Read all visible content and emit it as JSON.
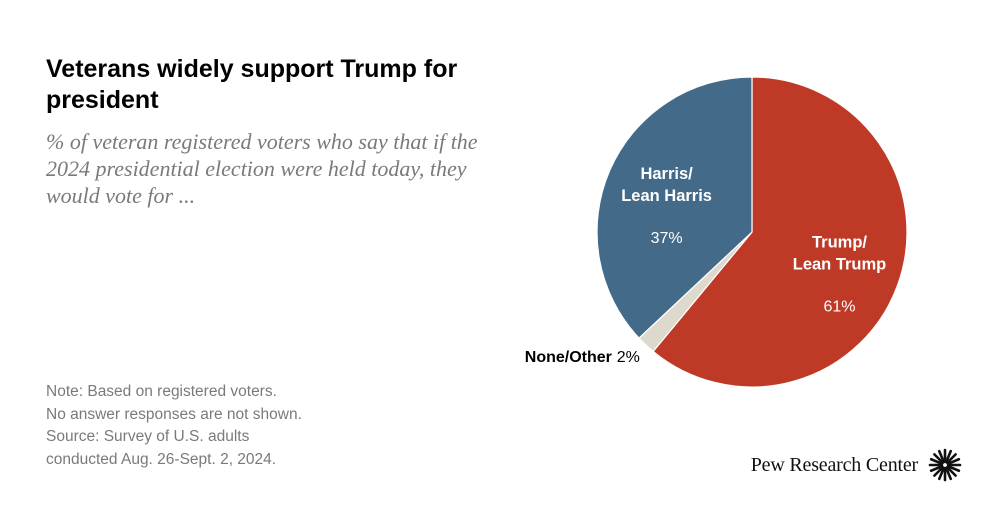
{
  "title": "Veterans widely support Trump for president",
  "subtitle": "% of veteran registered voters who say that if the 2024 presidential election were held today, they would vote for ...",
  "notes": [
    "Note: Based on registered voters.",
    "No answer responses are not shown.",
    "Source: Survey of U.S. adults",
    "conducted Aug. 26-Sept. 2, 2024."
  ],
  "brand": {
    "name": "Pew Research Center",
    "icon": "pew-starburst-icon"
  },
  "chart_data": {
    "type": "pie",
    "title": "Veterans widely support Trump for president",
    "slices": [
      {
        "id": "trump",
        "label_lines": [
          "Trump/",
          "Lean Trump"
        ],
        "value": 61,
        "value_label": "61%",
        "color": "#bf3927",
        "label_position": "inside"
      },
      {
        "id": "none",
        "label_lines": [
          "None/Other"
        ],
        "value": 2,
        "value_label": "2%",
        "color": "#ddd9cc",
        "label_position": "outside-left"
      },
      {
        "id": "harris",
        "label_lines": [
          "Harris/",
          "Lean Harris"
        ],
        "value": 37,
        "value_label": "37%",
        "color": "#436a88",
        "label_position": "inside"
      }
    ],
    "start": "12 o'clock",
    "direction": "clockwise"
  }
}
